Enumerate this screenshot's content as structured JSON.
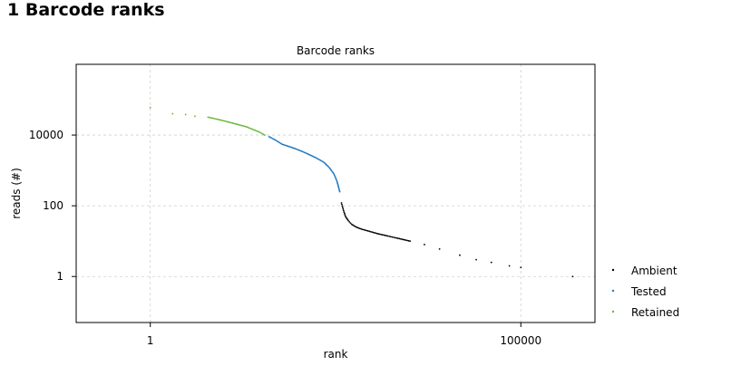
{
  "page": {
    "heading": "1 Barcode ranks"
  },
  "chart_data": {
    "type": "scatter",
    "title": "Barcode ranks",
    "xlabel": "rank",
    "ylabel": "reads (#)",
    "xscale": "log",
    "yscale": "log",
    "xlim": [
      0.1,
      1000000
    ],
    "ylim": [
      0.05,
      1000000
    ],
    "x_ticks": [
      {
        "value": 1,
        "label": "1"
      },
      {
        "value": 100000,
        "label": "100000"
      }
    ],
    "y_ticks": [
      {
        "value": 1,
        "label": "1"
      },
      {
        "value": 100,
        "label": "100"
      },
      {
        "value": 10000,
        "label": "10000"
      }
    ],
    "x_grid": [
      1,
      100000
    ],
    "y_grid": [
      1,
      100,
      10000
    ],
    "grid": true,
    "legend": "right",
    "series": [
      {
        "name": "Ambient",
        "color": "#000000",
        "points": [
          [
            380,
            120
          ],
          [
            400,
            80
          ],
          [
            430,
            50
          ],
          [
            470,
            38
          ],
          [
            520,
            30
          ],
          [
            600,
            25
          ],
          [
            700,
            22
          ],
          [
            900,
            19
          ],
          [
            1200,
            16
          ],
          [
            1600,
            14
          ],
          [
            2200,
            12
          ],
          [
            3200,
            10
          ],
          [
            5000,
            8
          ],
          [
            8000,
            6
          ],
          [
            15000,
            4
          ],
          [
            25000,
            3
          ],
          [
            40000,
            2.5
          ],
          [
            70000,
            2
          ],
          [
            100000,
            1.8
          ],
          [
            500000,
            1
          ]
        ]
      },
      {
        "name": "Tested",
        "color": "#1f78c1",
        "points": [
          [
            40,
            9000
          ],
          [
            50,
            7000
          ],
          [
            60,
            5500
          ],
          [
            80,
            4500
          ],
          [
            100,
            3800
          ],
          [
            130,
            3000
          ],
          [
            170,
            2300
          ],
          [
            220,
            1700
          ],
          [
            260,
            1200
          ],
          [
            300,
            800
          ],
          [
            330,
            500
          ],
          [
            360,
            250
          ]
        ]
      },
      {
        "name": "Retained",
        "color": "#6ab83b",
        "points": [
          [
            1,
            60000
          ],
          [
            2,
            40000
          ],
          [
            3,
            38000
          ],
          [
            4,
            34000
          ],
          [
            6,
            32000
          ],
          [
            8,
            28000
          ],
          [
            10,
            25000
          ],
          [
            15,
            20000
          ],
          [
            20,
            17000
          ],
          [
            25,
            14000
          ],
          [
            30,
            12000
          ],
          [
            35,
            10000
          ]
        ]
      }
    ]
  }
}
